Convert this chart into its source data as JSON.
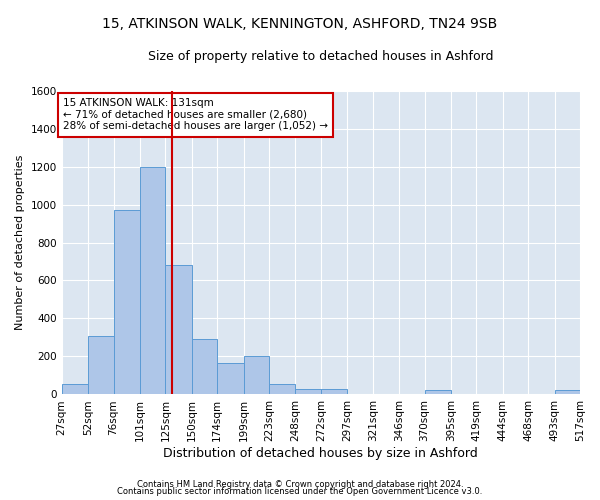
{
  "title1": "15, ATKINSON WALK, KENNINGTON, ASHFORD, TN24 9SB",
  "title2": "Size of property relative to detached houses in Ashford",
  "xlabel": "Distribution of detached houses by size in Ashford",
  "ylabel": "Number of detached properties",
  "footer1": "Contains HM Land Registry data © Crown copyright and database right 2024.",
  "footer2": "Contains public sector information licensed under the Open Government Licence v3.0.",
  "annotation_line1": "15 ATKINSON WALK: 131sqm",
  "annotation_line2": "← 71% of detached houses are smaller (2,680)",
  "annotation_line3": "28% of semi-detached houses are larger (1,052) →",
  "vline_x": 131,
  "bin_edges": [
    27,
    52,
    76,
    101,
    125,
    150,
    174,
    199,
    223,
    248,
    272,
    297,
    321,
    346,
    370,
    395,
    419,
    444,
    468,
    493,
    517
  ],
  "bar_heights": [
    55,
    310,
    970,
    1200,
    680,
    290,
    165,
    200,
    55,
    30,
    30,
    0,
    0,
    0,
    25,
    0,
    0,
    0,
    0,
    25
  ],
  "bar_color": "#aec6e8",
  "bar_edge_color": "#5b9bd5",
  "vline_color": "#cc0000",
  "plot_bg_color": "#dce6f1",
  "fig_bg_color": "#ffffff",
  "ylim": [
    0,
    1600
  ],
  "yticks": [
    0,
    200,
    400,
    600,
    800,
    1000,
    1200,
    1400,
    1600
  ],
  "grid_color": "#ffffff",
  "annotation_box_edgecolor": "#cc0000",
  "title1_fontsize": 10,
  "title2_fontsize": 9,
  "xlabel_fontsize": 9,
  "ylabel_fontsize": 8,
  "tick_fontsize": 7.5,
  "footer_fontsize": 6,
  "annotation_fontsize": 7.5
}
